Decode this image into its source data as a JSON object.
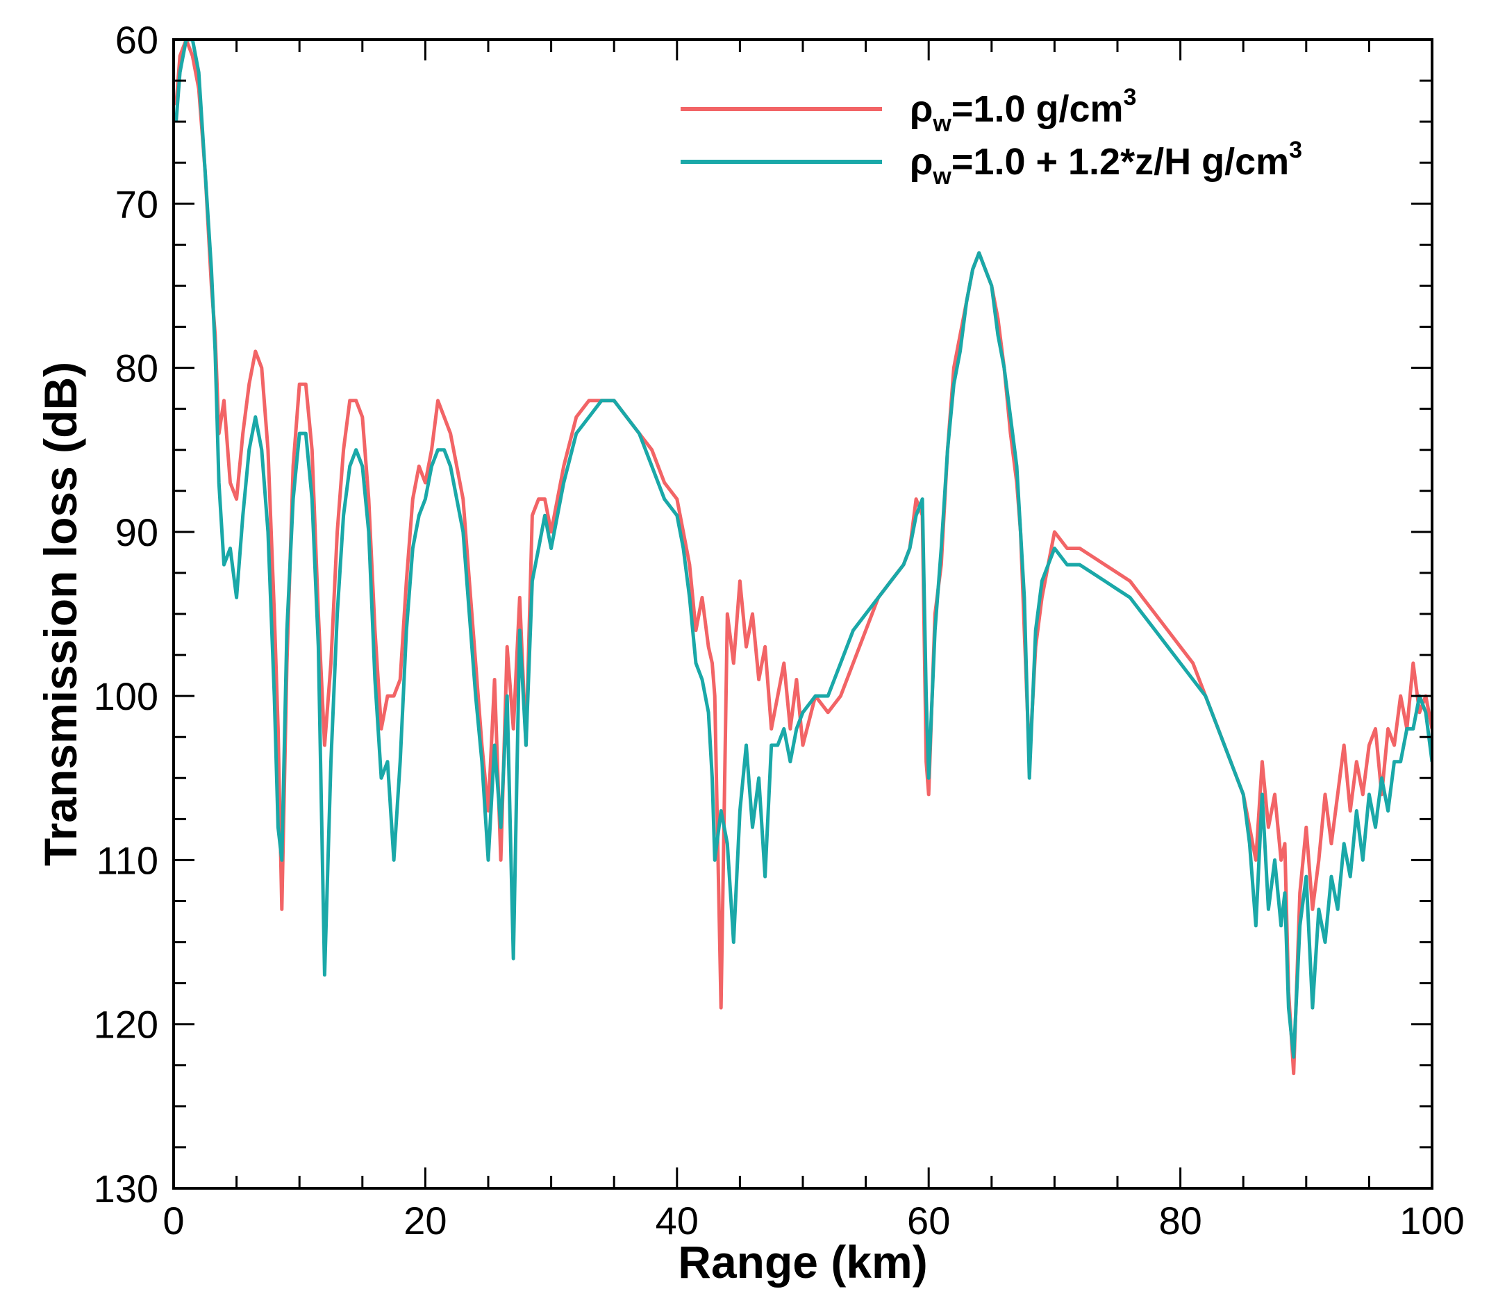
{
  "chart_data": {
    "type": "line",
    "title": "",
    "xlabel": "Range (km)",
    "ylabel": "Transmission loss (dB)",
    "xlim": [
      0,
      100
    ],
    "ylim": [
      130,
      60
    ],
    "y_inverted": true,
    "grid": false,
    "legend_position": "top-right",
    "x_ticks": [
      0,
      20,
      40,
      60,
      80,
      100
    ],
    "y_ticks": [
      60,
      70,
      80,
      90,
      100,
      110,
      120,
      130
    ],
    "x_tick_labels": [
      "0",
      "20",
      "40",
      "60",
      "80",
      "100"
    ],
    "y_tick_labels": [
      "60",
      "70",
      "80",
      "90",
      "100",
      "110",
      "120",
      "130"
    ],
    "legend": [
      {
        "symbol": "ρ",
        "sub": "w",
        "text": "=1.0  g/cm",
        "sup": "3"
      },
      {
        "symbol": "ρ",
        "sub": "w",
        "text": "=1.0 + 1.2*z/H  g/cm",
        "sup": "3"
      }
    ],
    "series": [
      {
        "name": "ρw=1.0 g/cm3",
        "color": "#f26466",
        "x": [
          0.2,
          0.5,
          1,
          1.5,
          2,
          2.5,
          3,
          3.3,
          3.6,
          4,
          4.5,
          5,
          5.5,
          6,
          6.5,
          7,
          7.5,
          8,
          8.3,
          8.6,
          9,
          9.5,
          10,
          10.5,
          11,
          11.5,
          12,
          12.5,
          13,
          13.5,
          14,
          14.5,
          15,
          15.5,
          16,
          16.5,
          17,
          17.5,
          18,
          18.5,
          19,
          19.5,
          20,
          20.5,
          21,
          21.5,
          22,
          22.5,
          23,
          23.5,
          24,
          24.5,
          25,
          25.5,
          26,
          26.5,
          27,
          27.5,
          28,
          28.5,
          29,
          29.5,
          30,
          31,
          32,
          33,
          34,
          35,
          36,
          37,
          38,
          39,
          40,
          40.5,
          41,
          41.5,
          42,
          42.5,
          42.8,
          43,
          43.5,
          44,
          44.5,
          45,
          45.5,
          46,
          46.5,
          47,
          47.5,
          48,
          48.5,
          49,
          49.5,
          50,
          51,
          52,
          53,
          54,
          55,
          56,
          57,
          58,
          58.5,
          59,
          59.5,
          59.8,
          60,
          60.5,
          61,
          61.5,
          62,
          62.5,
          63,
          63.5,
          64,
          64.5,
          65,
          65.5,
          66,
          66.5,
          67,
          67.3,
          67.6,
          68,
          68.5,
          69,
          69.5,
          70,
          71,
          72,
          73,
          74,
          75,
          76,
          77,
          78,
          79,
          80,
          81,
          82,
          83,
          84,
          85,
          85.5,
          86,
          86.5,
          87,
          87.5,
          88,
          88.3,
          88.6,
          89,
          89.5,
          90,
          90.5,
          91,
          91.5,
          92,
          92.5,
          93,
          93.5,
          94,
          94.5,
          95,
          95.5,
          96,
          96.5,
          97,
          97.5,
          98,
          98.5,
          99,
          99.5,
          100
        ],
        "y": [
          64,
          61,
          60,
          61,
          63,
          68,
          75,
          78,
          84,
          82,
          87,
          88,
          84,
          81,
          79,
          80,
          85,
          95,
          102,
          113,
          98,
          86,
          81,
          81,
          85,
          95,
          103,
          98,
          90,
          85,
          82,
          82,
          83,
          88,
          96,
          102,
          100,
          100,
          99,
          93,
          88,
          86,
          87,
          85,
          82,
          83,
          84,
          86,
          88,
          93,
          98,
          103,
          107,
          99,
          110,
          97,
          102,
          94,
          103,
          89,
          88,
          88,
          90,
          86,
          83,
          82,
          82,
          82,
          83,
          84,
          85,
          87,
          88,
          90,
          92,
          96,
          94,
          97,
          98,
          100,
          119,
          95,
          98,
          93,
          97,
          95,
          99,
          97,
          102,
          100,
          98,
          102,
          99,
          103,
          100,
          101,
          100,
          98,
          96,
          94,
          93,
          92,
          91,
          88,
          89,
          104,
          106,
          95,
          92,
          85,
          80,
          78,
          76,
          74,
          73,
          74,
          75,
          77,
          80,
          84,
          87,
          90,
          96,
          104,
          97,
          94,
          92,
          90,
          91,
          91,
          91.5,
          92,
          92.5,
          93,
          94,
          95,
          96,
          97,
          98,
          100,
          102,
          104,
          106,
          108,
          110,
          104,
          108,
          106,
          110,
          109,
          118,
          123,
          112,
          108,
          113,
          110,
          106,
          109,
          106,
          103,
          107,
          104,
          106,
          103,
          102,
          106,
          102,
          103,
          100,
          102,
          98,
          101,
          100,
          102
        ],
        "z_order": 1
      },
      {
        "name": "ρw=1.0 + 1.2*z/H g/cm3",
        "color": "#1aa8a8",
        "x": [
          0.2,
          0.5,
          1,
          1.5,
          2,
          2.5,
          3,
          3.3,
          3.6,
          4,
          4.5,
          5,
          5.5,
          6,
          6.5,
          7,
          7.5,
          8,
          8.3,
          8.6,
          9,
          9.5,
          10,
          10.5,
          11,
          11.5,
          12,
          12.5,
          13,
          13.5,
          14,
          14.5,
          15,
          15.5,
          16,
          16.5,
          17,
          17.5,
          18,
          18.5,
          19,
          19.5,
          20,
          20.5,
          21,
          21.5,
          22,
          22.5,
          23,
          23.5,
          24,
          24.5,
          25,
          25.5,
          26,
          26.5,
          27,
          27.5,
          28,
          28.5,
          29,
          29.5,
          30,
          31,
          32,
          33,
          34,
          35,
          36,
          37,
          38,
          39,
          40,
          40.5,
          41,
          41.5,
          42,
          42.5,
          42.8,
          43,
          43.5,
          44,
          44.5,
          45,
          45.5,
          46,
          46.5,
          47,
          47.5,
          48,
          48.5,
          49,
          49.5,
          50,
          51,
          52,
          53,
          54,
          55,
          56,
          57,
          58,
          58.5,
          59,
          59.5,
          59.8,
          60,
          60.5,
          61,
          61.5,
          62,
          62.5,
          63,
          63.5,
          64,
          64.5,
          65,
          65.5,
          66,
          66.5,
          67,
          67.3,
          67.6,
          68,
          68.5,
          69,
          69.5,
          70,
          71,
          72,
          73,
          74,
          75,
          76,
          77,
          78,
          79,
          80,
          81,
          82,
          83,
          84,
          85,
          85.5,
          86,
          86.5,
          87,
          87.5,
          88,
          88.3,
          88.6,
          89,
          89.5,
          90,
          90.5,
          91,
          91.5,
          92,
          92.5,
          93,
          93.5,
          94,
          94.5,
          95,
          95.5,
          96,
          96.5,
          97,
          97.5,
          98,
          98.5,
          99,
          99.5,
          100
        ],
        "y": [
          65,
          62,
          60,
          60,
          62,
          68,
          74,
          79,
          87,
          92,
          91,
          94,
          89,
          85,
          83,
          85,
          90,
          100,
          108,
          110,
          96,
          88,
          84,
          84,
          88,
          97,
          117,
          104,
          95,
          89,
          86,
          85,
          86,
          90,
          99,
          105,
          104,
          110,
          104,
          96,
          91,
          89,
          88,
          86,
          85,
          85,
          86,
          88,
          90,
          95,
          100,
          104,
          110,
          103,
          108,
          100,
          116,
          96,
          103,
          93,
          91,
          89,
          91,
          87,
          84,
          83,
          82,
          82,
          83,
          84,
          86,
          88,
          89,
          91,
          94,
          98,
          99,
          101,
          105,
          110,
          107,
          109,
          115,
          107,
          103,
          108,
          105,
          111,
          103,
          103,
          102,
          104,
          102,
          101,
          100,
          100,
          98,
          96,
          95,
          94,
          93,
          92,
          91,
          89,
          88,
          100,
          105,
          96,
          91,
          85,
          81,
          79,
          76,
          74,
          73,
          74,
          75,
          78,
          80,
          83,
          86,
          90,
          94,
          105,
          96,
          93,
          92,
          91,
          92,
          92,
          92.5,
          93,
          93.5,
          94,
          95,
          96,
          97,
          98,
          99,
          100,
          102,
          104,
          106,
          109,
          114,
          106,
          113,
          110,
          114,
          112,
          119,
          122,
          114,
          111,
          119,
          113,
          115,
          111,
          113,
          109,
          111,
          107,
          110,
          106,
          108,
          105,
          107,
          104,
          104,
          102,
          102,
          100,
          101,
          104
        ],
        "z_order": 2
      }
    ]
  }
}
